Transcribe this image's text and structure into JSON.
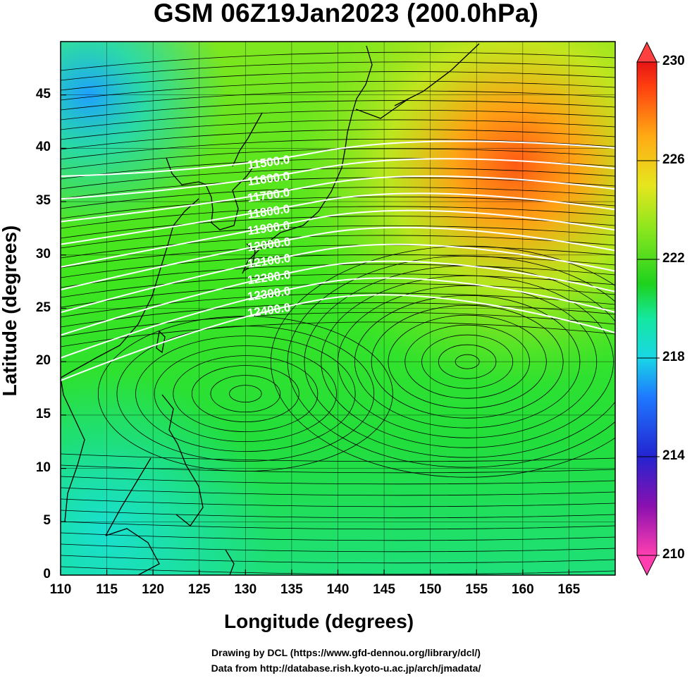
{
  "title": "GSM 06Z19Jan2023 (200.0hPa)",
  "axes": {
    "xlabel": "Longitude (degrees)",
    "ylabel": "Latitude  (degrees)",
    "xticks": [
      "110",
      "115",
      "120",
      "125",
      "130",
      "135",
      "140",
      "145",
      "150",
      "155",
      "160",
      "165"
    ],
    "yticks": [
      "0",
      "5",
      "10",
      "15",
      "20",
      "25",
      "30",
      "35",
      "40",
      "45"
    ],
    "xrange": [
      110,
      170
    ],
    "yrange": [
      0,
      50
    ]
  },
  "colorbar": {
    "ticks": [
      "230",
      "226",
      "222",
      "218",
      "214",
      "210"
    ],
    "range": [
      210,
      230
    ],
    "colors": [
      "#ff3fb0",
      "#7a00a8",
      "#2020d0",
      "#1e78ff",
      "#19d6e6",
      "#14e878",
      "#1ed21e",
      "#8ae61e",
      "#e6e61e",
      "#ffaa14",
      "#ff5014",
      "#e61414"
    ]
  },
  "contours": {
    "labels": [
      "11500.0",
      "11600.0",
      "11700.0",
      "11800.0",
      "11900.0",
      "12000.0",
      "12100.0",
      "12200.0",
      "12300.0",
      "12400.0"
    ],
    "color": "#ffffff"
  },
  "credits": {
    "line1": "Drawing by DCL (https://www.gfd-dennou.org/library/dcl/)",
    "line2": "Data from http://database.rish.kyoto-u.ac.jp/arch/jmadata/"
  }
}
